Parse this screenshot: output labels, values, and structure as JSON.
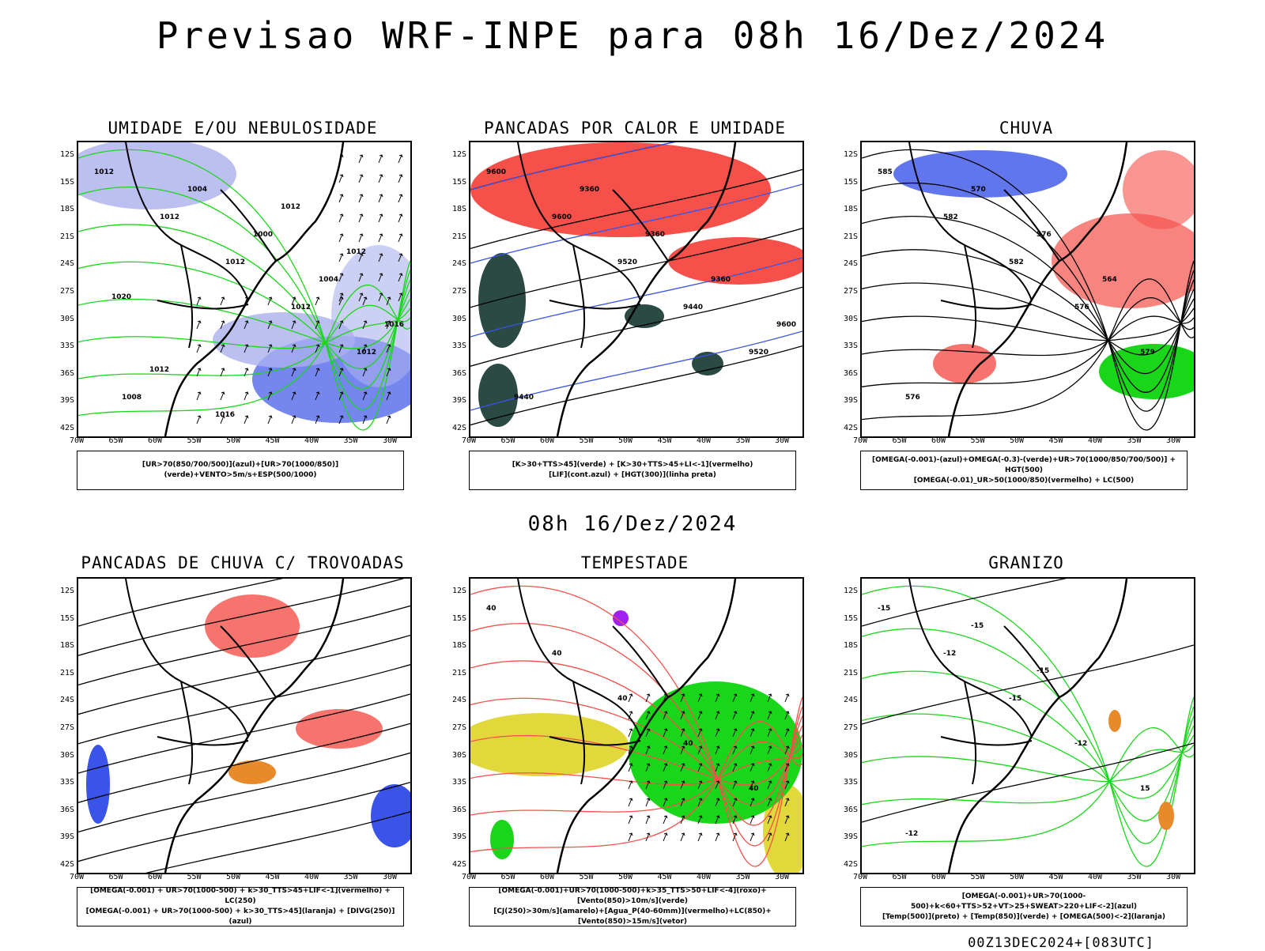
{
  "title": "Previsao WRF-INPE  para 08h 16/Dez/2024",
  "subtitle": "08h 16/Dez/2024",
  "footer": "00Z13DEC2024+[083UTC]",
  "colors": {
    "blue": "#3a53e8",
    "green": "#1ad61a",
    "red": "#f5504a",
    "darkgreen": "#2c4a44",
    "orange": "#e88a2a",
    "yellow": "#e1d93c",
    "purple": "#a020f0",
    "lavender": "#aab0ee"
  },
  "axes": {
    "lat": [
      "12S",
      "15S",
      "18S",
      "21S",
      "24S",
      "27S",
      "30S",
      "33S",
      "36S",
      "39S",
      "42S"
    ],
    "lon": [
      "70W",
      "65W",
      "60W",
      "55W",
      "50W",
      "45W",
      "40W",
      "35W",
      "30W"
    ]
  },
  "panels": [
    {
      "title": "UMIDADE E/OU NEBULOSIDADE",
      "legend": [
        "[UR>70(850/700/500)](azul)+[UR>70(1000/850)](verde)+VENTO>5m/s+ESP(500/1000)"
      ],
      "labels": [
        "1012",
        "1012",
        "1012",
        "1012",
        "1012",
        "1008",
        "1004",
        "1000",
        "1004",
        "1016",
        "1012",
        "1016",
        "1012",
        "1012",
        "1020"
      ]
    },
    {
      "title": "PANCADAS POR CALOR E UMIDADE",
      "legend": [
        "[K>30+TTS>45](verde) + [K>30+TTS>45+LI<-1](vermelho)",
        "[LIF](cont.azul) + [HGT(300)](linha preta)"
      ],
      "labels": [
        "9600",
        "9600",
        "9520",
        "9440",
        "9520",
        "9440",
        "9360",
        "9360",
        "9360",
        "9600"
      ]
    },
    {
      "title": "CHUVA",
      "legend": [
        "[OMEGA(-0.001)-(azul)+OMEGA(-0.3)-(verde)+UR>70(1000/850/700/500)] + HGT(500)",
        "[OMEGA(-0.01)_UR>50(1000/850)(vermelho) + LC(500)"
      ],
      "labels": [
        "585",
        "582",
        "582",
        "576",
        "579",
        "576",
        "570",
        "576",
        "564"
      ]
    },
    {
      "title": "PANCADAS DE CHUVA C/ TROVOADAS",
      "legend": [
        "[OMEGA(-0.001) + UR>70(1000-500) + k>30_TTS>45+LIF<-1](vermelho) + LC(250)",
        "[OMEGA(-0.001) + UR>70(1000-500) + k>30_TTS>45](laranja) + [DIVG(250)](azul)"
      ],
      "labels": []
    },
    {
      "title": "TEMPESTADE",
      "legend": [
        "[OMEGA(-0.001)+UR>70(1000-500)+k>35_TTS>50+LIF<-4](roxo)+[Vento(850)>10m/s](verde)",
        "[CJ(250)>30m/s](amarelo)+[Agua_P(40-60mm)](vermelho)+LC(850)+[Vento(850)>15m/s](vetor)"
      ],
      "labels": [
        "40",
        "40",
        "40",
        "40",
        "40"
      ]
    },
    {
      "title": "GRANIZO",
      "legend": [
        "[OMEGA(-0.001)+UR>70(1000-500)+k<60+TTS>52+VT>25+SWEAT>220+LIF<-2](azul)",
        "[Temp(500)](preto) + [Temp(850)](verde) + [OMEGA(500)<-2](laranja)"
      ],
      "labels": [
        "-15",
        "-12",
        "-15",
        "-12",
        "15",
        "-12",
        "-15",
        "-15"
      ]
    }
  ]
}
